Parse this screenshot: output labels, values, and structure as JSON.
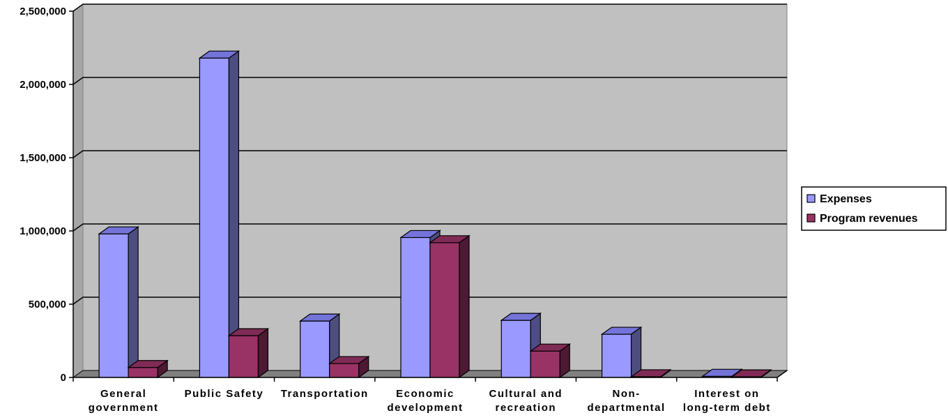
{
  "chart_data": {
    "type": "bar",
    "style": "3d-clustered-column",
    "categories": [
      [
        "General",
        "government"
      ],
      [
        "Public Safety"
      ],
      [
        "Transportation"
      ],
      [
        "Economic",
        "development"
      ],
      [
        "Cultural and",
        "recreation"
      ],
      [
        "Non-",
        "departmental"
      ],
      [
        "Interest on",
        "long-term debt"
      ]
    ],
    "series": [
      {
        "name": "Expenses",
        "values": [
          980000,
          2180000,
          385000,
          955000,
          390000,
          295000,
          8000
        ],
        "color": "#9999ff",
        "side_color": "#4d4d80",
        "top_color": "#7373d9"
      },
      {
        "name": "Program revenues",
        "values": [
          68000,
          285000,
          95000,
          920000,
          180000,
          5000,
          4000
        ],
        "color": "#993366",
        "side_color": "#4d1933",
        "top_color": "#802b55"
      }
    ],
    "ylim": [
      0,
      2500000
    ],
    "yticks": [
      0,
      500000,
      1000000,
      1500000,
      2000000,
      2500000
    ],
    "ytick_labels": [
      "0",
      "500,000",
      "1,000,000",
      "1,500,000",
      "2,000,000",
      "2,500,000"
    ],
    "grid": true,
    "legend_position": "right",
    "plot_background": "#c0c0c0",
    "floor_color": "#808080"
  }
}
